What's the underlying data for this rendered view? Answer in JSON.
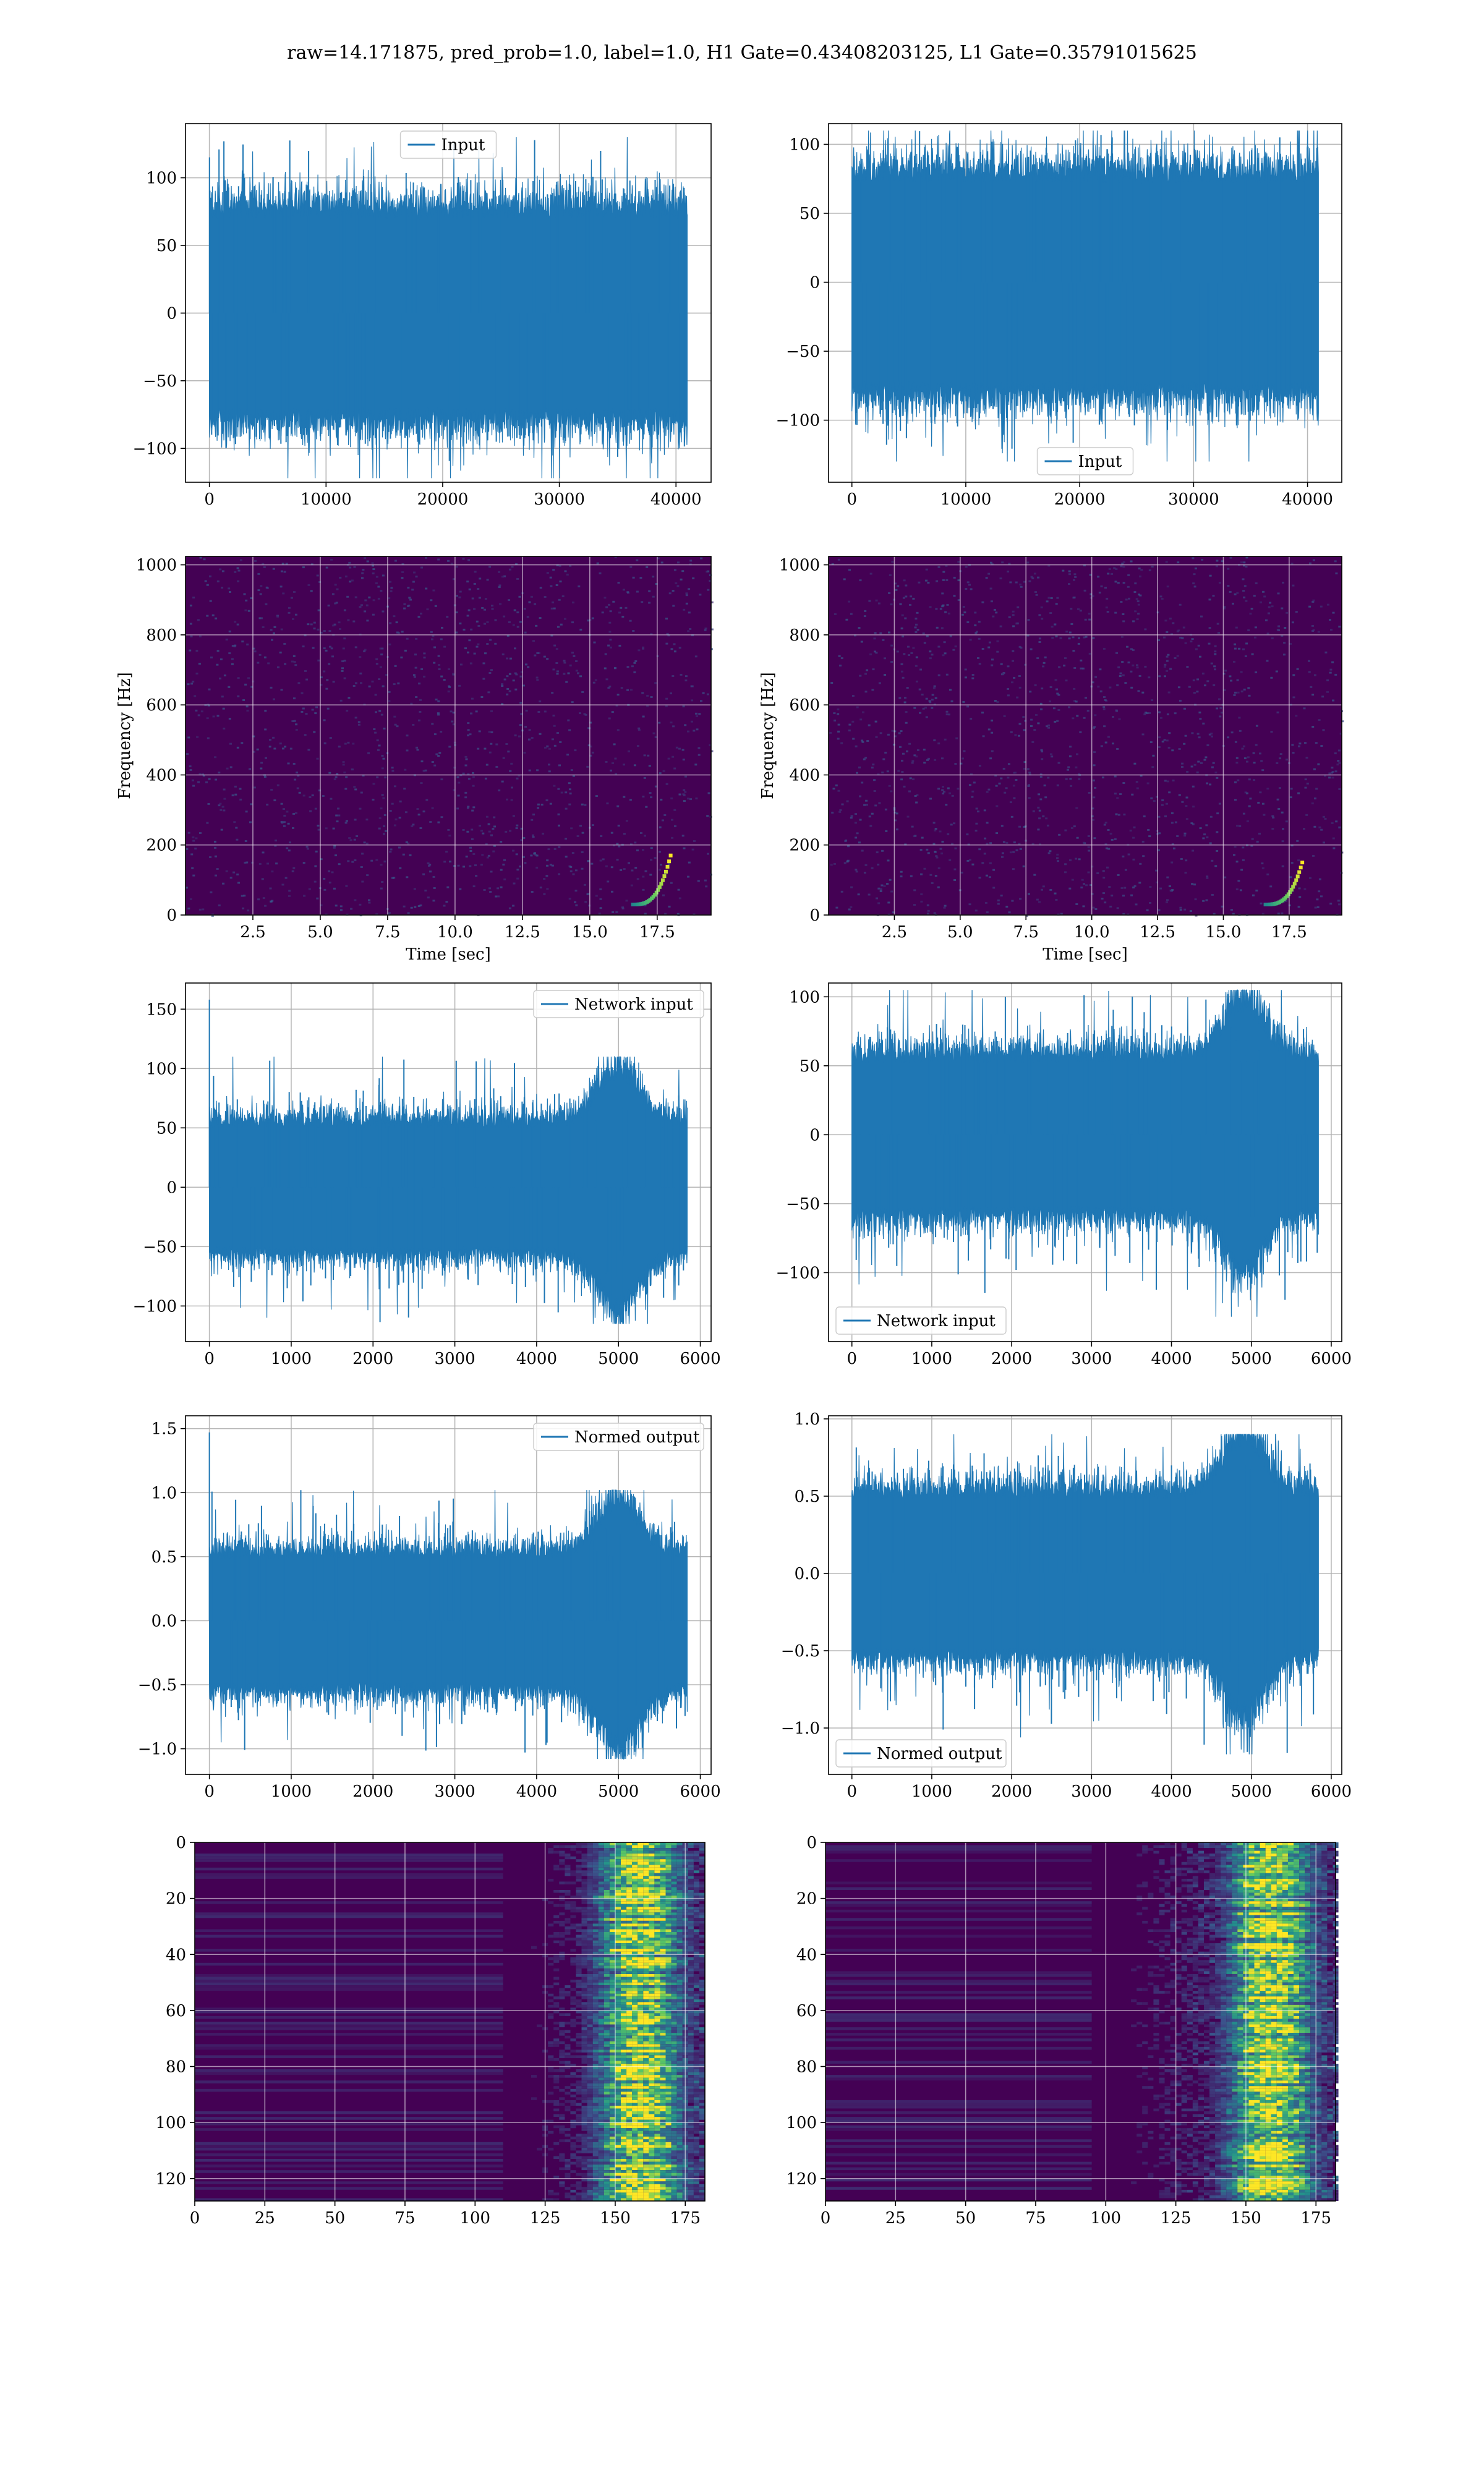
{
  "figure": {
    "title": "raw=14.171875, pred_prob=1.0, label=1.0, H1 Gate=0.43408203125, L1 Gate=0.35791015625"
  },
  "colors": {
    "series": "#1f77b4",
    "viridis_low": "#440154",
    "viridis_high": "#fde725"
  },
  "chart_data": [
    {
      "id": "h1-input",
      "type": "line",
      "legend": "Input",
      "legend_position": "upper center",
      "grid": true,
      "x_range": [
        0,
        40960
      ],
      "xlim": [
        -2048,
        43008
      ],
      "ylim": [
        -125,
        140
      ],
      "xticks": [
        0,
        10000,
        20000,
        30000,
        40000
      ],
      "yticks": [
        -100,
        -50,
        0,
        50,
        100
      ],
      "envelope": [
        -70,
        70
      ],
      "peak_min": -122,
      "peak_max": 130
    },
    {
      "id": "l1-input",
      "type": "line",
      "legend": "Input",
      "legend_position": "lower center",
      "grid": true,
      "x_range": [
        0,
        40960
      ],
      "xlim": [
        -2048,
        43008
      ],
      "ylim": [
        -145,
        115
      ],
      "xticks": [
        0,
        10000,
        20000,
        30000,
        40000
      ],
      "yticks": [
        -100,
        -50,
        0,
        50,
        100
      ],
      "envelope": [
        -72,
        72
      ],
      "peak_min": -130,
      "peak_max": 110
    },
    {
      "id": "h1-spectrogram",
      "type": "heatmap",
      "grid": true,
      "xlabel": "Time [sec]",
      "ylabel": "Frequency [Hz]",
      "xlim": [
        0,
        19.5
      ],
      "ylim": [
        0,
        1024
      ],
      "xticks": [
        2.5,
        5.0,
        7.5,
        10.0,
        12.5,
        15.0,
        17.5
      ],
      "yticks": [
        0,
        200,
        400,
        600,
        800,
        1000
      ],
      "chirp": {
        "t_start": 16.6,
        "t_merge": 18.0,
        "f_start": 30,
        "f_merge": 170
      }
    },
    {
      "id": "l1-spectrogram",
      "type": "heatmap",
      "grid": true,
      "xlabel": "Time [sec]",
      "ylabel": "Frequency [Hz]",
      "xlim": [
        0,
        19.5
      ],
      "ylim": [
        0,
        1024
      ],
      "xticks": [
        2.5,
        5.0,
        7.5,
        10.0,
        12.5,
        15.0,
        17.5
      ],
      "yticks": [
        0,
        200,
        400,
        600,
        800,
        1000
      ],
      "chirp": {
        "t_start": 16.6,
        "t_merge": 18.0,
        "f_start": 30,
        "f_merge": 150
      }
    },
    {
      "id": "h1-network-input",
      "type": "line",
      "legend": "Network input",
      "legend_position": "upper right",
      "grid": true,
      "x_range": [
        0,
        5840
      ],
      "xlim": [
        -292,
        6132
      ],
      "ylim": [
        -130,
        172
      ],
      "xticks": [
        0,
        1000,
        2000,
        3000,
        4000,
        5000,
        6000
      ],
      "yticks": [
        -100,
        -50,
        0,
        50,
        100,
        150
      ],
      "envelope": [
        -50,
        50
      ],
      "spike_at_start": 158,
      "burst_center": 5000,
      "burst_gain": 1.8,
      "peak_min": -115,
      "peak_max": 110
    },
    {
      "id": "l1-network-input",
      "type": "line",
      "legend": "Network input",
      "legend_position": "lower left",
      "grid": true,
      "x_range": [
        0,
        5840
      ],
      "xlim": [
        -292,
        6132
      ],
      "ylim": [
        -150,
        110
      ],
      "xticks": [
        0,
        1000,
        2000,
        3000,
        4000,
        5000,
        6000
      ],
      "yticks": [
        -100,
        -50,
        0,
        50,
        100
      ],
      "envelope": [
        -52,
        52
      ],
      "burst_center": 4900,
      "burst_gain": 1.7,
      "peak_min": -132,
      "peak_max": 105
    },
    {
      "id": "h1-normed-output",
      "type": "line",
      "legend": "Normed output",
      "legend_position": "upper right",
      "grid": true,
      "x_range": [
        0,
        5840
      ],
      "xlim": [
        -292,
        6132
      ],
      "ylim": [
        -1.2,
        1.6
      ],
      "xticks": [
        0,
        1000,
        2000,
        3000,
        4000,
        5000,
        6000
      ],
      "yticks": [
        -1.0,
        -0.5,
        0.0,
        0.5,
        1.0,
        1.5
      ],
      "envelope": [
        -0.48,
        0.48
      ],
      "spike_at_start": 1.47,
      "burst_center": 5000,
      "burst_gain": 1.8,
      "peak_min": -1.08,
      "peak_max": 1.02
    },
    {
      "id": "l1-normed-output",
      "type": "line",
      "legend": "Normed output",
      "legend_position": "lower left",
      "grid": true,
      "x_range": [
        0,
        5840
      ],
      "xlim": [
        -292,
        6132
      ],
      "ylim": [
        -1.3,
        1.02
      ],
      "xticks": [
        0,
        1000,
        2000,
        3000,
        4000,
        5000,
        6000
      ],
      "yticks": [
        -1.0,
        -0.5,
        0.0,
        0.5,
        1.0
      ],
      "envelope": [
        -0.48,
        0.48
      ],
      "burst_center": 4900,
      "burst_gain": 1.7,
      "peak_min": -1.17,
      "peak_max": 0.9
    },
    {
      "id": "h1-feature-map",
      "type": "heatmap",
      "grid": true,
      "xlim": [
        0,
        182
      ],
      "ylim": [
        128,
        0
      ],
      "xticks": [
        0,
        25,
        50,
        75,
        100,
        125,
        150,
        175
      ],
      "yticks": [
        0,
        20,
        40,
        60,
        80,
        100,
        120
      ],
      "n_cols": 182,
      "n_rows": 128,
      "activation_start": 110,
      "activation_peak": 158
    },
    {
      "id": "l1-feature-map",
      "type": "heatmap",
      "grid": true,
      "xlim": [
        0,
        182
      ],
      "ylim": [
        128,
        0
      ],
      "xticks": [
        0,
        25,
        50,
        75,
        100,
        125,
        150,
        175
      ],
      "yticks": [
        0,
        20,
        40,
        60,
        80,
        100,
        120
      ],
      "n_cols": 182,
      "n_rows": 128,
      "activation_start": 95,
      "activation_peak": 158
    }
  ]
}
